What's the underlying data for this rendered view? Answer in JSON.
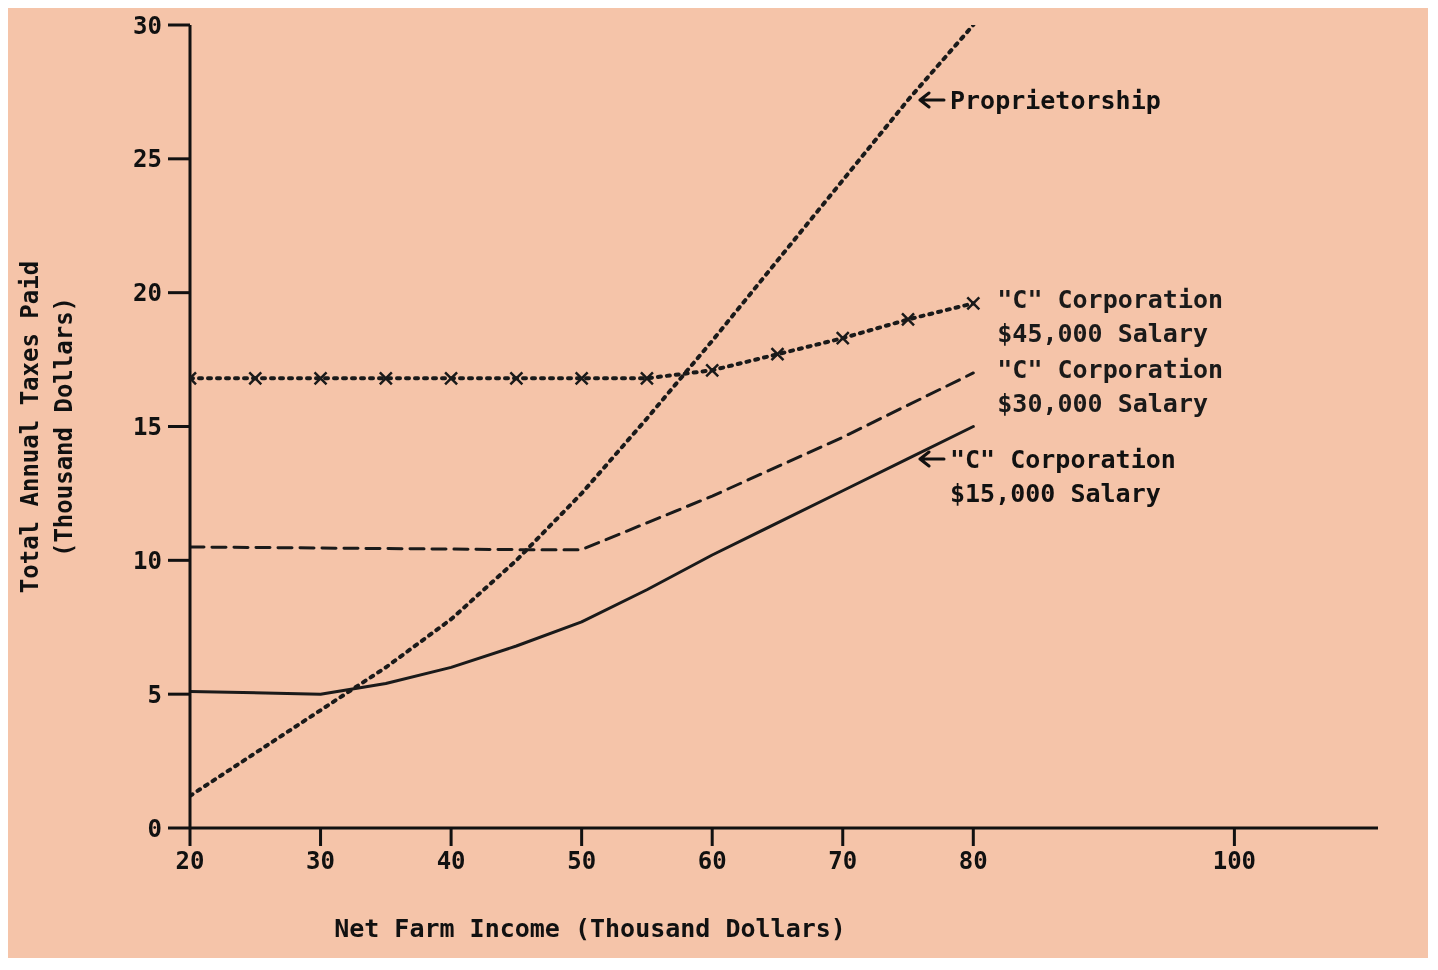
{
  "chart_data": {
    "type": "line",
    "xlabel": "Net Farm Income (Thousand Dollars)",
    "ylabel": "Total Annual Taxes Paid (Thousand Dollars)",
    "xlim": [
      20,
      111
    ],
    "ylim": [
      0,
      30
    ],
    "xticks": [
      20,
      30,
      40,
      50,
      60,
      70,
      80,
      100
    ],
    "yticks": [
      0,
      5,
      10,
      15,
      20,
      25,
      30
    ],
    "grid": false,
    "legend": false,
    "series": [
      {
        "color": "#1a1a1a",
        "line_style": "dotted",
        "marker": "none",
        "x": [
          20,
          25,
          30,
          35,
          40,
          45,
          50,
          55,
          60,
          65,
          70,
          75,
          80
        ],
        "values": [
          1.2,
          2.8,
          4.4,
          6.0,
          7.8,
          10.0,
          12.5,
          15.3,
          18.2,
          21.2,
          24.2,
          27.2,
          30.0
        ]
      },
      {
        "name": "\"C\" Corporation $45,000 Salary",
        "color": "#1a1a1a",
        "line_style": "dotted",
        "marker": "cross",
        "x": [
          20,
          25,
          30,
          35,
          40,
          45,
          50,
          55,
          60,
          65,
          70,
          75,
          80
        ],
        "values": [
          16.8,
          16.8,
          16.8,
          16.8,
          16.8,
          16.8,
          16.8,
          16.8,
          17.1,
          17.7,
          18.3,
          19.0,
          19.6
        ]
      },
      {
        "name": "\"C\" Corporation $30,000 Salary",
        "color": "#1a1a1a",
        "line_style": "dashed",
        "marker": "none",
        "x": [
          20,
          45,
          50,
          55,
          60,
          70,
          80
        ],
        "values": [
          10.5,
          10.4,
          10.4,
          11.4,
          12.4,
          14.6,
          17.0
        ]
      },
      {
        "color": "#1a1a1a",
        "line_style": "solid",
        "marker": "none",
        "x": [
          20,
          30,
          35,
          40,
          45,
          50,
          55,
          60,
          70,
          75,
          80
        ],
        "values": [
          5.1,
          5.0,
          5.4,
          6.0,
          6.8,
          7.7,
          8.9,
          10.2,
          12.6,
          13.8,
          15.0
        ]
      }
    ],
    "annotations": [
      {
        "text": "Proprietorship",
        "x": 75,
        "y": 27.2
      },
      {
        "text": "\"C\" Corporation $15,000 Salary",
        "x": 75,
        "y": 13.8
      }
    ]
  }
}
